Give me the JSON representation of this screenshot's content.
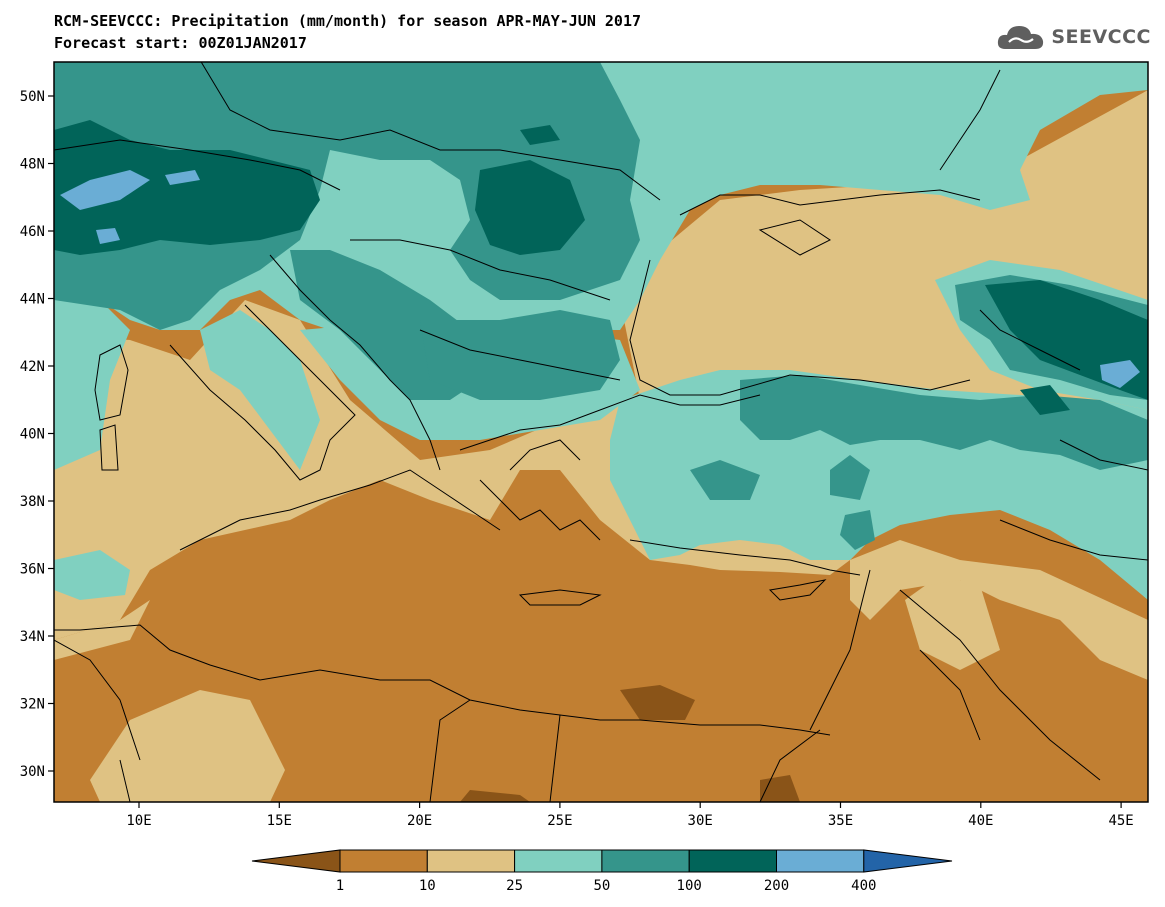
{
  "header": {
    "title_line1": "RCM-SEEVCCC: Precipitation (mm/month) for season APR-MAY-JUN 2017",
    "title_line2": "Forecast start: 00Z01JAN2017"
  },
  "logo": {
    "text": "SEEVCCC",
    "icon": "cloud-icon",
    "color": "#5f5f5f"
  },
  "map": {
    "lat_labels": [
      "50N",
      "48N",
      "46N",
      "44N",
      "42N",
      "40N",
      "38N",
      "36N",
      "34N",
      "32N",
      "30N"
    ],
    "lon_labels": [
      "10E",
      "15E",
      "20E",
      "25E",
      "30E",
      "35E",
      "40E",
      "45E"
    ]
  },
  "colorbar": {
    "thresholds": [
      "1",
      "10",
      "25",
      "50",
      "100",
      "200",
      "400"
    ],
    "colors": [
      "#8a5418",
      "#c17f32",
      "#dfc283",
      "#80d0c0",
      "#35958b",
      "#016459",
      "#6aadd5",
      "#2364a8"
    ]
  }
}
